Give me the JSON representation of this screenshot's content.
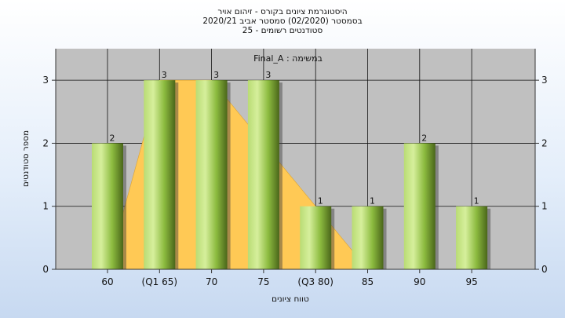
{
  "chart_data": {
    "type": "bar",
    "title_lines": [
      "היסטוגרמת ציונים בקורס - זיהום אויר",
      "בסמסטר  (02/2020)  סמסטר אביב 2020/21",
      "סטודנטים רשומים - 25"
    ],
    "subtitle": "במשימה : Final_A",
    "xlabel": "טווח ציונים",
    "ylabel": "מספר סטודנטים",
    "categories": [
      "60",
      "(Q1 65)",
      "70",
      "75",
      "(Q3 80)",
      "85",
      "90",
      "95"
    ],
    "values": [
      2,
      3,
      3,
      3,
      1,
      1,
      2,
      1
    ],
    "area_values": [
      0,
      3,
      3,
      2,
      1,
      0,
      0,
      0
    ],
    "yticks": [
      0,
      1,
      2,
      3
    ],
    "ylim": [
      0,
      3.5
    ],
    "grid": true,
    "colors": {
      "bar_light": "#cbe88a",
      "bar_mid": "#94c346",
      "bar_dark": "#4d6a1a",
      "area_fill": "#ffc955",
      "plot_bg": "#c0c0c0"
    }
  }
}
